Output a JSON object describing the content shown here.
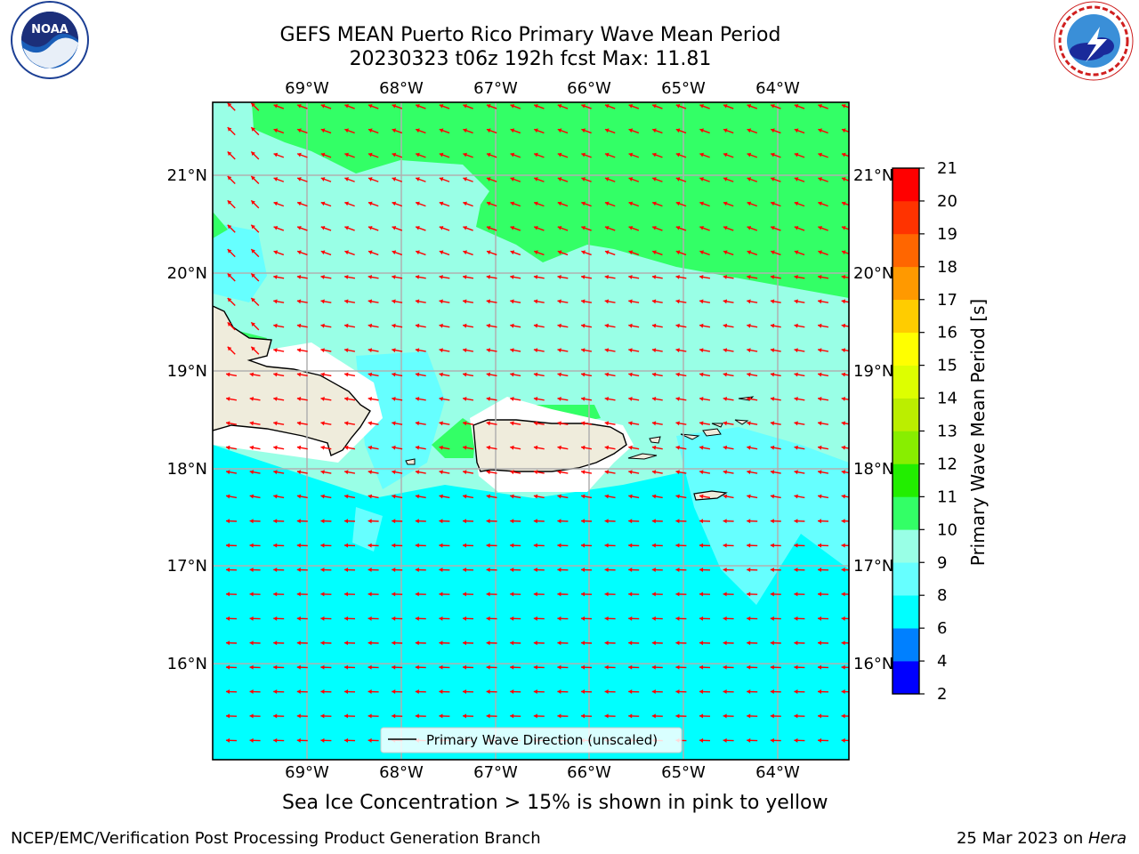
{
  "title_line1": "GEFS MEAN Puerto Rico Primary Wave Mean Period",
  "title_line2": "20230323 t06z 192h fcst   Max: 11.81",
  "map": {
    "lon_labels": [
      "69°W",
      "68°W",
      "67°W",
      "66°W",
      "65°W",
      "64°W"
    ],
    "lat_labels": [
      "21°N",
      "20°N",
      "19°N",
      "18°N",
      "17°N",
      "16°N"
    ],
    "legend_label": "Primary Wave Direction (unscaled)",
    "arrow_color": "#ff0000",
    "land_color": "#efecdc"
  },
  "colorbar": {
    "label": "Primary Wave Mean Period [s]",
    "ticks": [
      "2",
      "4",
      "6",
      "8",
      "9",
      "10",
      "11",
      "12",
      "13",
      "14",
      "15",
      "16",
      "17",
      "18",
      "19",
      "20",
      "21"
    ],
    "colors": [
      "#0000ff",
      "#0080ff",
      "#00ffff",
      "#66ffff",
      "#99ffe6",
      "#33ff66",
      "#22ee00",
      "#88ee00",
      "#bbee00",
      "#ddff00",
      "#ffff00",
      "#ffcc00",
      "#ff9900",
      "#ff6600",
      "#ff3300",
      "#ff0000"
    ]
  },
  "note": "Sea Ice Concentration > 15% is shown in pink to yellow",
  "footer_left": "NCEP/EMC/Verification Post Processing Product Generation Branch",
  "footer_date": "25 Mar 2023 on ",
  "footer_host": "Hera",
  "logos": {
    "noaa_text": "NOAA",
    "nws_text": "NATIONAL WEATHER SERVICE"
  }
}
